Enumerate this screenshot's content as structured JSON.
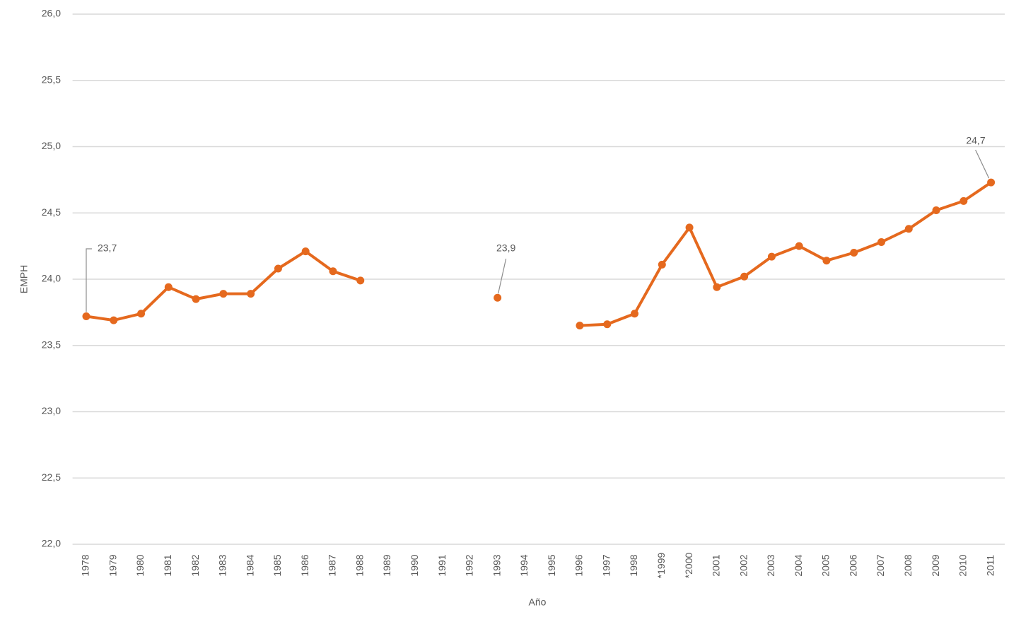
{
  "chart_data": {
    "type": "line",
    "x_label": "Año",
    "y_label": "EMPH",
    "categories": [
      "1978",
      "1979",
      "1980",
      "1981",
      "1982",
      "1983",
      "1984",
      "1985",
      "1986",
      "1987",
      "1988",
      "1989",
      "1990",
      "1991",
      "1992",
      "1993",
      "1994",
      "1995",
      "1996",
      "1997",
      "1998",
      "*1999",
      "*2000",
      "2001",
      "2002",
      "2003",
      "2004",
      "2005",
      "2006",
      "2007",
      "2008",
      "2009",
      "2010",
      "2011"
    ],
    "values": [
      23.72,
      23.69,
      23.74,
      23.94,
      23.85,
      23.89,
      23.89,
      24.08,
      24.21,
      24.06,
      23.99,
      null,
      null,
      null,
      null,
      23.86,
      null,
      null,
      23.65,
      23.66,
      23.74,
      24.11,
      24.39,
      23.94,
      24.02,
      24.17,
      24.25,
      24.14,
      24.2,
      24.28,
      24.38,
      24.52,
      24.59,
      24.73
    ],
    "value_labels": [
      "23,7",
      null,
      null,
      null,
      null,
      null,
      null,
      null,
      null,
      null,
      null,
      null,
      null,
      null,
      null,
      "23,9",
      null,
      null,
      null,
      null,
      null,
      null,
      null,
      null,
      null,
      null,
      null,
      null,
      null,
      null,
      null,
      null,
      null,
      "24,7"
    ],
    "color": "#e5691e",
    "ylim": [
      22,
      26
    ],
    "yticks": [
      {
        "value": 22,
        "label": "22,0"
      },
      {
        "value": 22.5,
        "label": "22,5"
      },
      {
        "value": 23,
        "label": "23,0"
      },
      {
        "value": 23.5,
        "label": "23,5"
      },
      {
        "value": 24,
        "label": "24,0"
      },
      {
        "value": 24.5,
        "label": "24,5"
      },
      {
        "value": 25,
        "label": "25,0"
      },
      {
        "value": 25.5,
        "label": "25,5"
      },
      {
        "value": 26,
        "label": "26,0"
      }
    ],
    "grid": true
  }
}
